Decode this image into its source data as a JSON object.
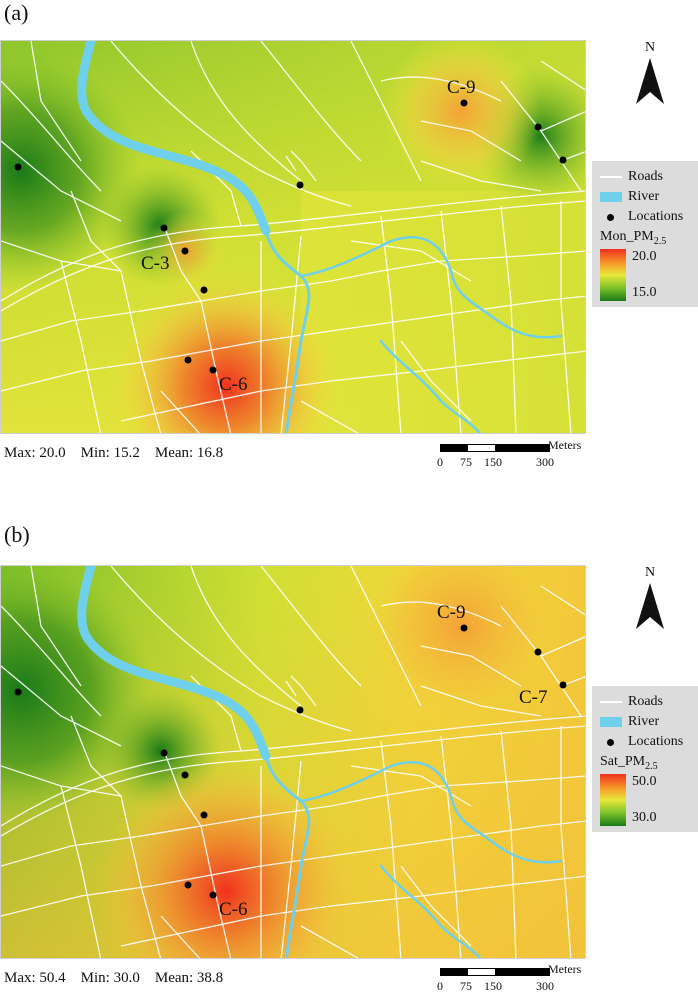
{
  "panels": [
    {
      "label": "(a)",
      "legend": {
        "roads": "Roads",
        "river": "River",
        "locations": "Locations",
        "variable_prefix": "Mon_PM",
        "variable_sub": "2.5",
        "high": "20.0",
        "low": "15.0"
      },
      "stats": {
        "max": "Max: 20.0",
        "min": "Min: 15.2",
        "mean": "Mean: 16.8"
      },
      "site_labels": [
        "C-9",
        "C-3",
        "C-6"
      ]
    },
    {
      "label": "(b)",
      "legend": {
        "roads": "Roads",
        "river": "River",
        "locations": "Locations",
        "variable_prefix": "Sat_PM",
        "variable_sub": "2.5",
        "high": "50.0",
        "low": "30.0"
      },
      "stats": {
        "max": "Max: 50.4",
        "min": "Min: 30.0",
        "mean": "Mean: 38.8"
      },
      "site_labels": [
        "C-9",
        "C-7",
        "C-6"
      ]
    }
  ],
  "north_label": "N",
  "scalebar": {
    "unit": "Meters",
    "ticks": [
      "0",
      "75",
      "150",
      "300"
    ]
  },
  "colors": {
    "high": "#f0321e",
    "mid": "#e8e83a",
    "low": "#1a7a18",
    "river": "#6fd0ec",
    "roads": "#ffffff",
    "legend_bg": "#dcdcdc"
  }
}
